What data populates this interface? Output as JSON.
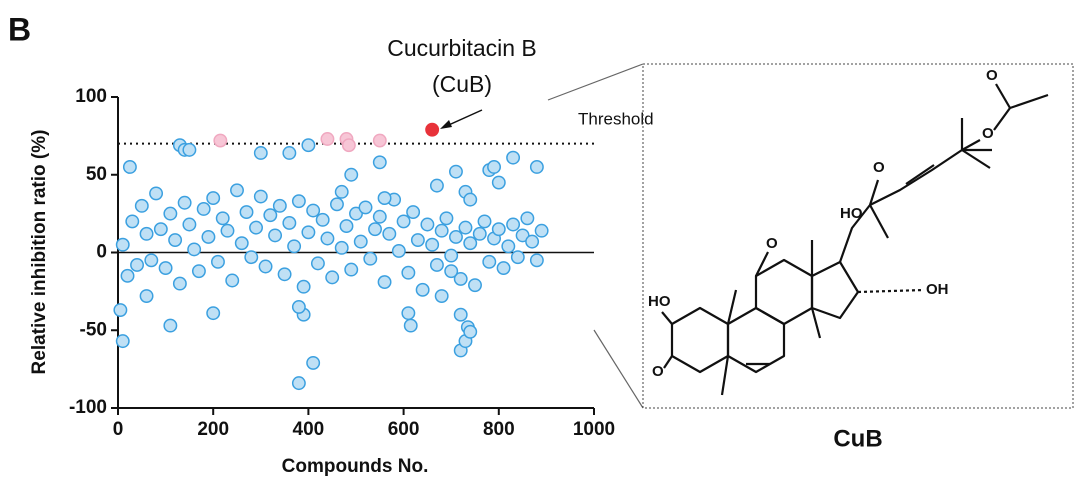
{
  "chart_data": {
    "type": "scatter",
    "panel_label": "B",
    "xlabel": "Compounds No.",
    "ylabel": "Relative inhibition ratio (%)",
    "annotation_title": "Cucurbitacin B",
    "annotation_subtitle": "(CuB)",
    "threshold_label": "Threshold",
    "threshold": 70,
    "xlim": [
      0,
      1000
    ],
    "ylim": [
      -100,
      100
    ],
    "xticks": [
      0,
      200,
      400,
      600,
      800,
      1000
    ],
    "yticks": [
      -100,
      -50,
      0,
      50,
      100
    ],
    "series": [
      {
        "color": "#bfe0f5",
        "edgecolor": "#3ba0e0",
        "x": [
          10,
          20,
          30,
          40,
          50,
          60,
          70,
          80,
          90,
          100,
          110,
          120,
          130,
          140,
          150,
          160,
          170,
          180,
          190,
          200,
          210,
          220,
          230,
          240,
          250,
          260,
          270,
          280,
          290,
          300,
          310,
          320,
          330,
          340,
          350,
          360,
          370,
          380,
          390,
          400,
          410,
          420,
          430,
          440,
          450,
          460,
          470,
          480,
          490,
          500,
          510,
          520,
          530,
          540,
          550,
          560,
          570,
          580,
          590,
          600,
          610,
          620,
          630,
          640,
          650,
          660,
          670,
          680,
          690,
          700,
          710,
          720,
          730,
          740,
          750,
          760,
          770,
          780,
          790,
          800,
          810,
          820,
          830,
          840,
          850,
          860,
          870,
          880,
          890,
          130,
          140,
          150,
          25,
          300,
          360,
          400,
          410,
          380,
          390,
          380,
          10,
          5,
          110,
          200,
          610,
          615,
          720,
          730,
          735,
          740,
          720,
          830,
          880,
          780,
          790,
          800,
          710,
          730,
          740,
          670,
          490,
          550,
          560,
          470,
          60,
          680,
          700
        ],
        "values": [
          5,
          -15,
          20,
          -8,
          30,
          12,
          -5,
          38,
          15,
          -10,
          25,
          8,
          -20,
          32,
          18,
          2,
          -12,
          28,
          10,
          35,
          -6,
          22,
          14,
          -18,
          40,
          6,
          26,
          -3,
          16,
          36,
          -9,
          24,
          11,
          30,
          -14,
          19,
          4,
          33,
          -22,
          13,
          27,
          -7,
          21,
          9,
          -16,
          31,
          3,
          17,
          -11,
          25,
          7,
          29,
          -4,
          15,
          23,
          -19,
          12,
          34,
          1,
          20,
          -13,
          26,
          8,
          -24,
          18,
          5,
          -8,
          14,
          22,
          -2,
          10,
          -17,
          16,
          6,
          -21,
          12,
          20,
          -6,
          9,
          15,
          -10,
          4,
          18,
          -3,
          11,
          22,
          7,
          -5,
          14,
          69,
          66,
          66,
          55,
          64,
          64,
          69,
          -71,
          -84,
          -40,
          -35,
          -57,
          -37,
          -47,
          -39,
          -39,
          -47,
          -63,
          -57,
          -48,
          -51,
          -40,
          61,
          55,
          53,
          55,
          45,
          52,
          39,
          34,
          43,
          50,
          58,
          35,
          39,
          -28,
          -28,
          -12
        ]
      },
      {
        "color": "#f7c6d6",
        "edgecolor": "#f0a8c0",
        "x": [
          215,
          440,
          480,
          485,
          550
        ],
        "values": [
          72,
          73,
          73,
          69,
          72
        ]
      },
      {
        "color": "#e8323a",
        "edgecolor": "#e8323a",
        "x": [
          660
        ],
        "values": [
          79
        ]
      }
    ]
  },
  "structure": {
    "atom_labels": [
      "HO",
      "O",
      "O",
      "HO",
      "OH",
      "O",
      "O",
      "O"
    ],
    "label": "CuB"
  }
}
